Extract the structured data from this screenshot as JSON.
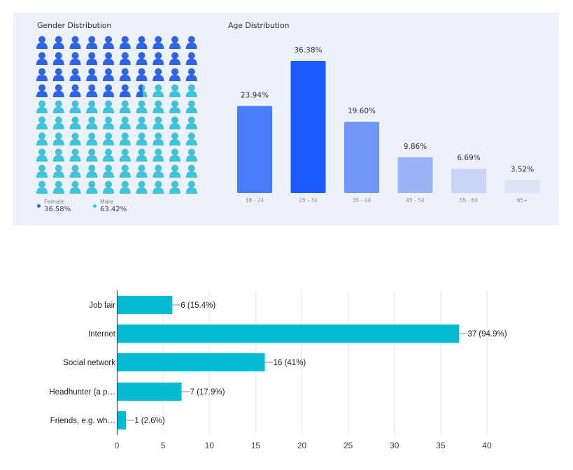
{
  "colors": {
    "panel_bg": "#edf1f9",
    "female": "#2f63e6",
    "male": "#3ec3d8",
    "age_bars": [
      "#4a7bfa",
      "#1a5bff",
      "#7198f8",
      "#9bb3f7",
      "#c8d3f6",
      "#dde2f6"
    ],
    "source_bar": "#03bcd4"
  },
  "chart_data": [
    {
      "type": "waffle",
      "title": "Gender Distribution",
      "grid": [
        10,
        10
      ],
      "series": [
        {
          "name": "Female",
          "value": 36.58,
          "label": "36.58%"
        },
        {
          "name": "Male",
          "value": 63.42,
          "label": "63.42%"
        }
      ]
    },
    {
      "type": "bar",
      "title": "Age Distribution",
      "categories": [
        "18 - 24",
        "25 - 34",
        "35 - 44",
        "45 - 54",
        "55 - 64",
        "65+"
      ],
      "values": [
        23.94,
        36.38,
        19.6,
        9.86,
        6.69,
        3.52
      ],
      "labels": [
        "23.94%",
        "36.38%",
        "19.60%",
        "9.86%",
        "6.69%",
        "3.52%"
      ],
      "ylim": [
        0,
        40
      ]
    },
    {
      "type": "bar",
      "orientation": "horizontal",
      "title": "",
      "categories": [
        "Job fair",
        "Internet",
        "Social network",
        "Headhunter (a p…",
        "Friends, e.g. wh…"
      ],
      "values": [
        6,
        37,
        16,
        7,
        1
      ],
      "labels": [
        "6 (15.4%)",
        "37 (94.9%)",
        "16 (41%)",
        "7 (17.9%)",
        "1 (2.6%)"
      ],
      "xlim": [
        0,
        40
      ],
      "xticks": [
        "0",
        "5",
        "10",
        "15",
        "20",
        "25",
        "30",
        "35",
        "40"
      ],
      "grid": true
    }
  ]
}
